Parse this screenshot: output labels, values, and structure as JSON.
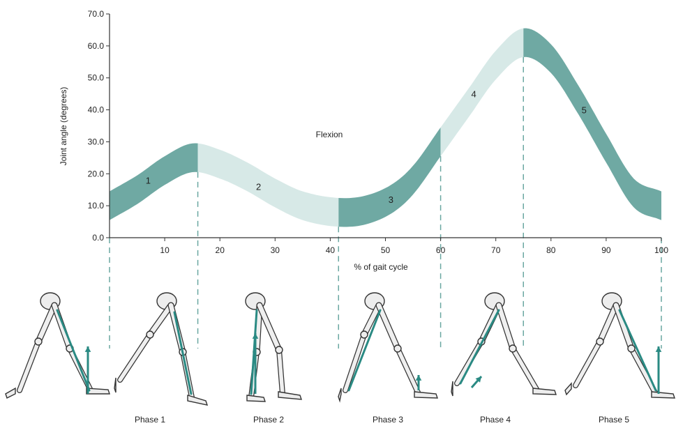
{
  "colors": {
    "dark": "#6fa9a3",
    "light": "#d7e9e7",
    "accent": "#2a8a83",
    "axis": "#333333",
    "dash": "#6aa7a1"
  },
  "chart_data": {
    "type": "area",
    "ylabel": "Joint angle (degrees)",
    "xlabel": "% of gait cycle",
    "annotation": "Flexion",
    "xlim": [
      0,
      100
    ],
    "ylim": [
      0,
      70
    ],
    "xticks": [
      "10",
      "20",
      "30",
      "40",
      "50",
      "60",
      "70",
      "80",
      "90",
      "100"
    ],
    "yticks": [
      "0.0",
      "10.0",
      "20.0",
      "30.0",
      "40.0",
      "50.0",
      "60.0",
      "70.0"
    ],
    "centerline": [
      {
        "x": 0,
        "y": 10
      },
      {
        "x": 5,
        "y": 15
      },
      {
        "x": 10,
        "y": 21
      },
      {
        "x": 15,
        "y": 25
      },
      {
        "x": 20,
        "y": 23
      },
      {
        "x": 25,
        "y": 19
      },
      {
        "x": 30,
        "y": 14
      },
      {
        "x": 35,
        "y": 10
      },
      {
        "x": 41,
        "y": 8
      },
      {
        "x": 46,
        "y": 8.5
      },
      {
        "x": 51,
        "y": 12
      },
      {
        "x": 55,
        "y": 18
      },
      {
        "x": 60,
        "y": 30
      },
      {
        "x": 65,
        "y": 42
      },
      {
        "x": 70,
        "y": 54
      },
      {
        "x": 75,
        "y": 61
      },
      {
        "x": 80,
        "y": 56
      },
      {
        "x": 85,
        "y": 43
      },
      {
        "x": 90,
        "y": 28
      },
      {
        "x": 95,
        "y": 14
      },
      {
        "x": 100,
        "y": 10
      }
    ],
    "band_halfwidth": 4.5,
    "phases": [
      {
        "label": "1",
        "start": 0,
        "end": 16,
        "shade": "dark",
        "label_x": 7,
        "label_y": 18
      },
      {
        "label": "2",
        "start": 16,
        "end": 41.5,
        "shade": "light",
        "label_x": 27,
        "label_y": 16
      },
      {
        "label": "3",
        "start": 41.5,
        "end": 60,
        "shade": "dark",
        "label_x": 51,
        "label_y": 12
      },
      {
        "label": "4",
        "start": 60,
        "end": 75,
        "shade": "light",
        "label_x": 66,
        "label_y": 45
      },
      {
        "label": "5",
        "start": 75,
        "end": 100,
        "shade": "dark",
        "label_x": 86,
        "label_y": 40
      }
    ],
    "dividers": [
      0,
      16,
      41.5,
      60,
      75,
      100
    ]
  },
  "phase_labels": [
    {
      "text": "Phase 1",
      "x": 16
    },
    {
      "text": "Phase 2",
      "x": 41.5
    },
    {
      "text": "Phase 3",
      "x": 60
    },
    {
      "text": "Phase 4",
      "x": 75
    },
    {
      "text": "Phase 5",
      "x": 100
    }
  ]
}
